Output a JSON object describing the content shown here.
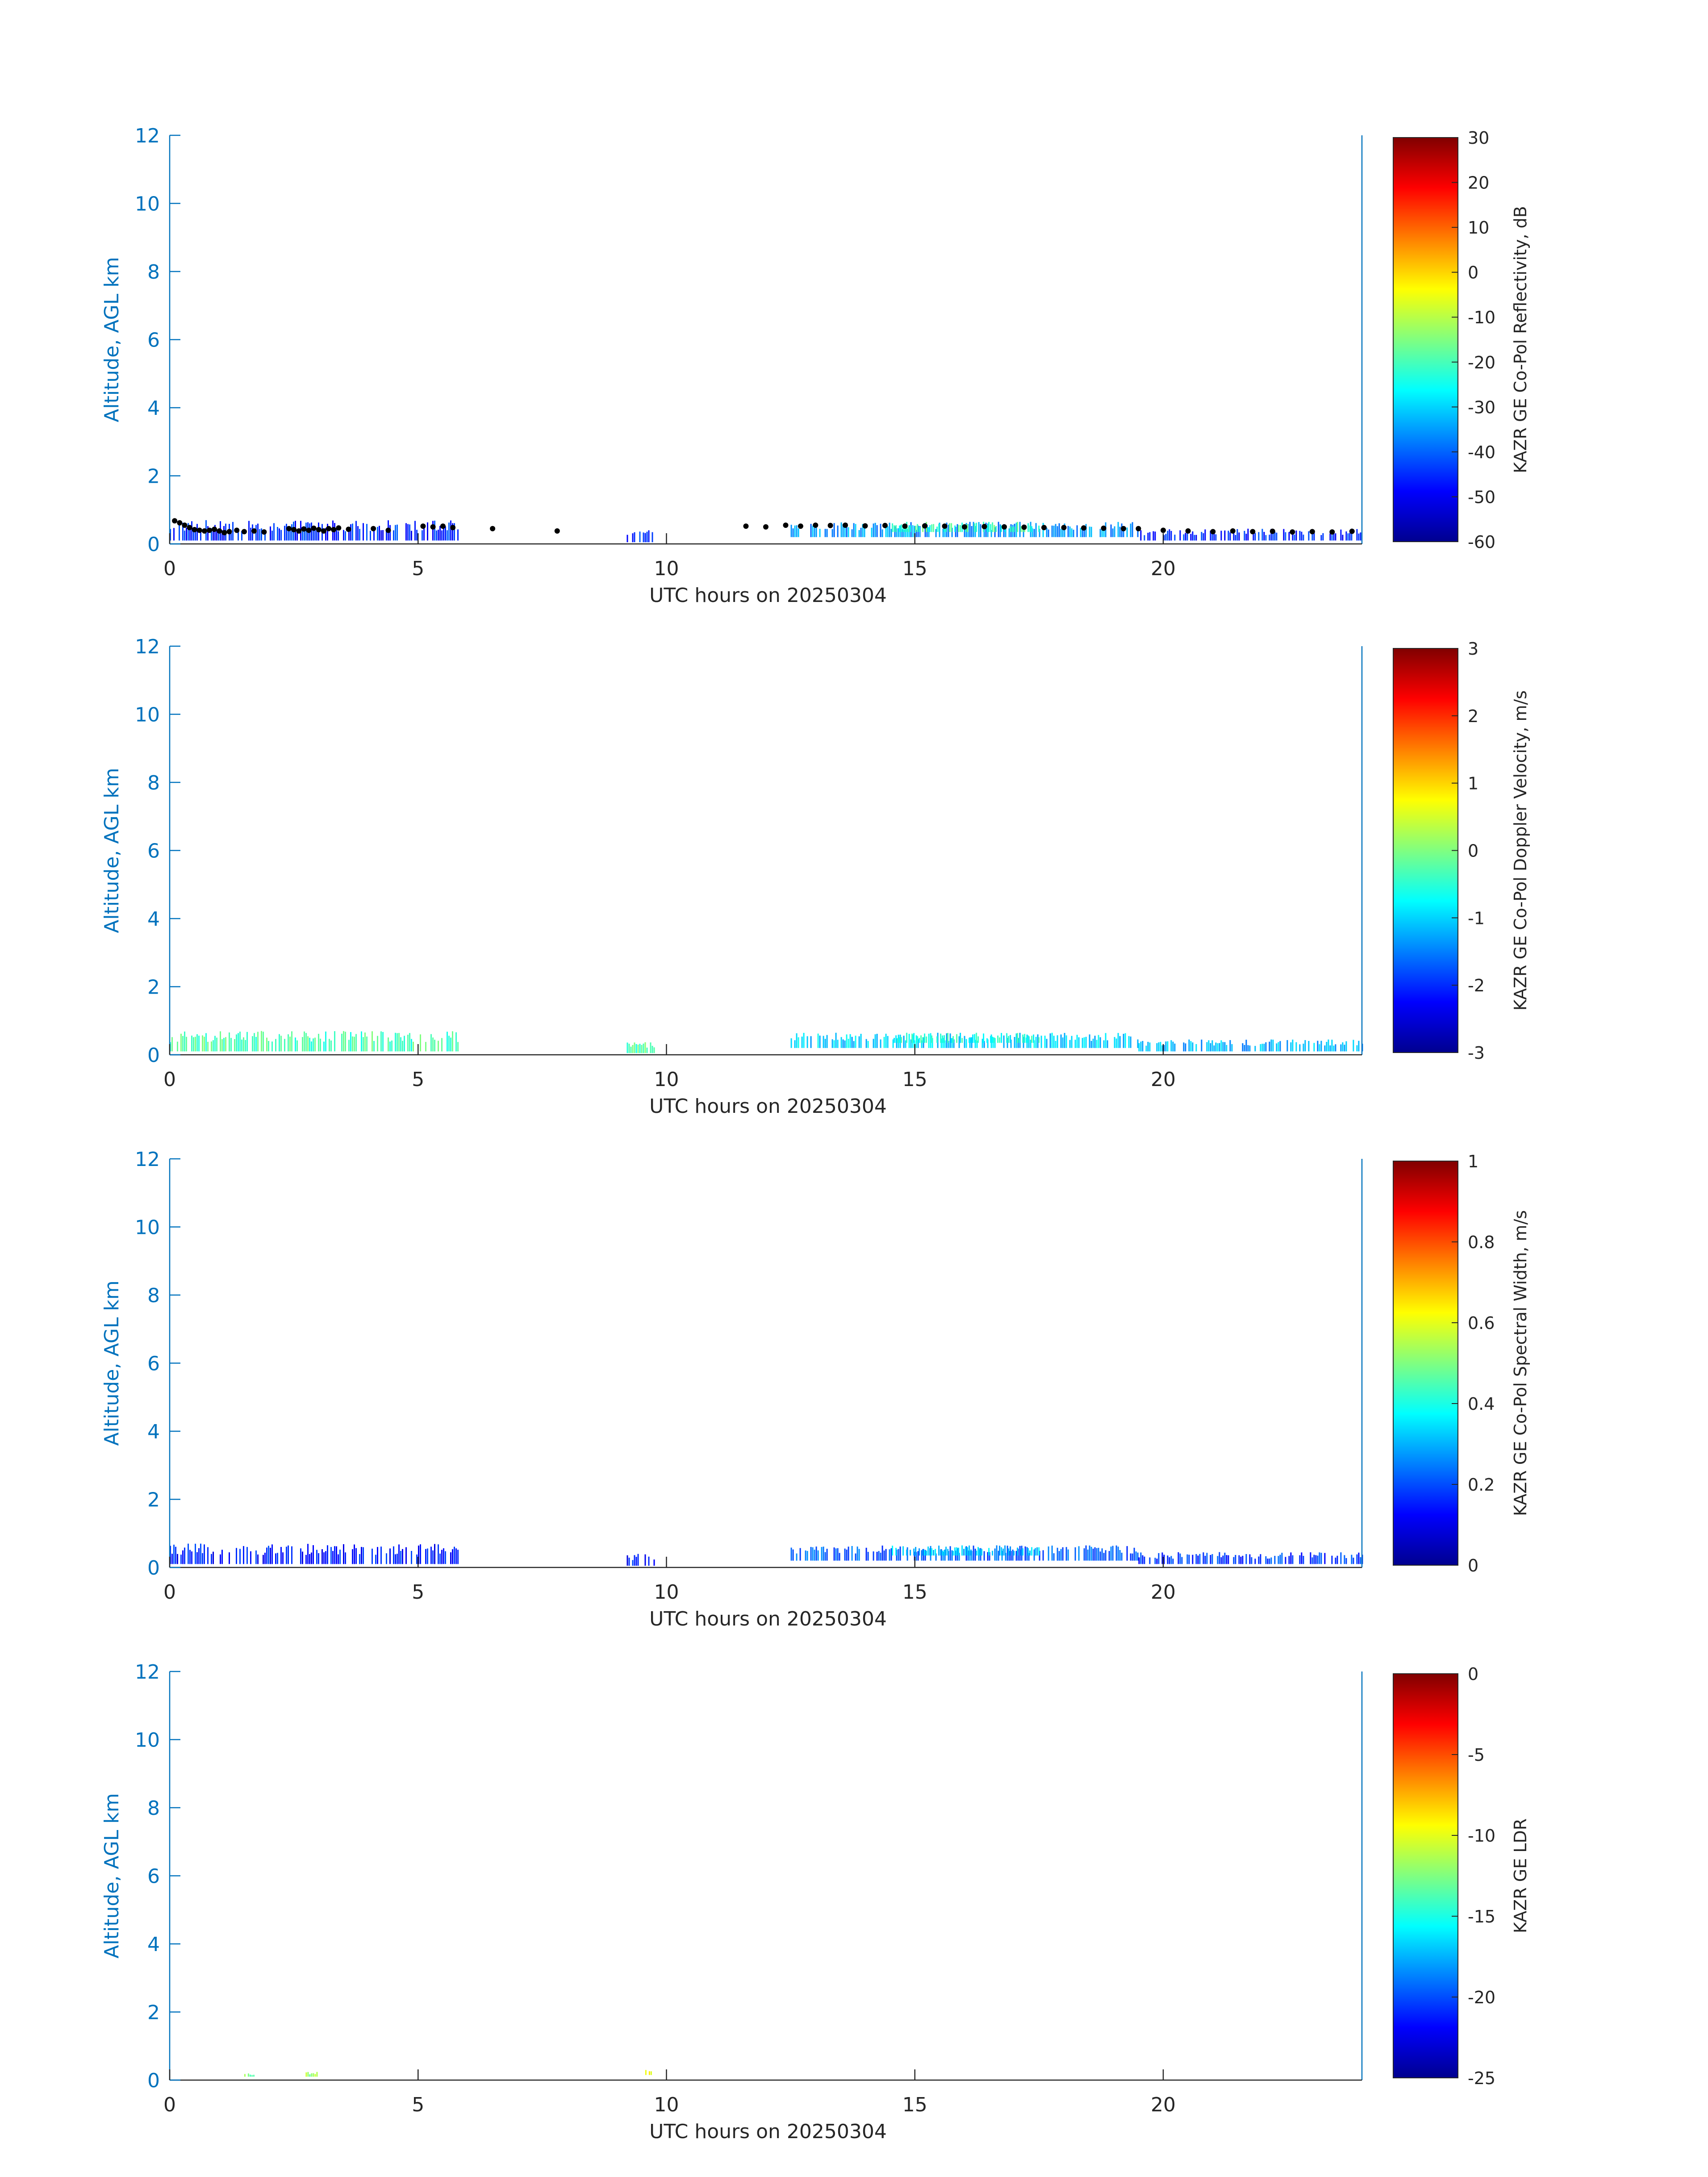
{
  "figure": {
    "panels": [
      {
        "ylabel": "Altitude, AGL km",
        "xlabel": "UTC hours on 20250304",
        "colorbar_label": "KAZR GE Co-Pol Reflectivity, dB",
        "colorbar_ticks": [
          "30",
          "20",
          "10",
          "0",
          "-10",
          "-20",
          "-30",
          "-40",
          "-50",
          "-60"
        ],
        "ytick_labels": [
          "0",
          "2",
          "4",
          "6",
          "8",
          "10",
          "12"
        ],
        "xtick_labels": [
          "0",
          "5",
          "10",
          "15",
          "20"
        ]
      },
      {
        "ylabel": "Altitude, AGL km",
        "xlabel": "UTC hours on 20250304",
        "colorbar_label": "KAZR GE Co-Pol Doppler Velocity, m/s",
        "colorbar_ticks": [
          "3",
          "2",
          "1",
          "0",
          "-1",
          "-2",
          "-3"
        ],
        "ytick_labels": [
          "0",
          "2",
          "4",
          "6",
          "8",
          "10",
          "12"
        ],
        "xtick_labels": [
          "0",
          "5",
          "10",
          "15",
          "20"
        ]
      },
      {
        "ylabel": "Altitude, AGL km",
        "xlabel": "UTC hours on 20250304",
        "colorbar_label": "KAZR GE Co-Pol Spectral Width, m/s",
        "colorbar_ticks": [
          "1",
          "0.8",
          "0.6",
          "0.4",
          "0.2",
          "0"
        ],
        "ytick_labels": [
          "0",
          "2",
          "4",
          "6",
          "8",
          "10",
          "12"
        ],
        "xtick_labels": [
          "0",
          "5",
          "10",
          "15",
          "20"
        ]
      },
      {
        "ylabel": "Altitude, AGL km",
        "xlabel": "UTC hours on 20250304",
        "colorbar_label": "KAZR GE LDR",
        "colorbar_ticks": [
          "0",
          "-5",
          "-10",
          "-15",
          "-20",
          "-25"
        ],
        "ytick_labels": [
          "0",
          "2",
          "4",
          "6",
          "8",
          "10",
          "12"
        ],
        "xtick_labels": [
          "0",
          "5",
          "10",
          "15",
          "20"
        ]
      }
    ]
  },
  "chart_data": [
    {
      "type": "heatmap",
      "variable": "KAZR GE Co-Pol Reflectivity",
      "units": "dB",
      "xlabel": "UTC hours on 20250304",
      "ylabel": "Altitude, AGL km",
      "xlim": [
        0,
        24
      ],
      "ylim": [
        0,
        12
      ],
      "xticks": [
        0,
        5,
        10,
        15,
        20
      ],
      "yticks": [
        0,
        2,
        4,
        6,
        8,
        10,
        12
      ],
      "clim": [
        -60,
        30
      ],
      "colorbar_ticks": [
        30,
        20,
        10,
        0,
        -10,
        -20,
        -30,
        -40,
        -50,
        -60
      ],
      "colormap": "jet",
      "echo_regions": [
        {
          "x": [
            0.0,
            5.8
          ],
          "y": [
            0.1,
            0.7
          ],
          "value": -45
        },
        {
          "x": [
            9.2,
            9.8
          ],
          "y": [
            0.05,
            0.4
          ],
          "value": -45
        },
        {
          "x": [
            12.5,
            19.5
          ],
          "y": [
            0.2,
            0.65
          ],
          "value": -35
        },
        {
          "x": [
            14.5,
            17.5
          ],
          "y": [
            0.35,
            0.65
          ],
          "value": -20
        },
        {
          "x": [
            19.5,
            24.0
          ],
          "y": [
            0.1,
            0.45
          ],
          "value": -45
        }
      ],
      "cloud_base_markers": {
        "color": "#000000",
        "points": [
          [
            0.1,
            0.68
          ],
          [
            0.2,
            0.62
          ],
          [
            0.3,
            0.55
          ],
          [
            0.4,
            0.48
          ],
          [
            0.5,
            0.42
          ],
          [
            0.6,
            0.4
          ],
          [
            0.7,
            0.38
          ],
          [
            0.8,
            0.4
          ],
          [
            0.9,
            0.43
          ],
          [
            1.0,
            0.38
          ],
          [
            1.1,
            0.33
          ],
          [
            1.2,
            0.36
          ],
          [
            1.35,
            0.4
          ],
          [
            1.5,
            0.36
          ],
          [
            1.7,
            0.38
          ],
          [
            1.9,
            0.35
          ],
          [
            2.4,
            0.45
          ],
          [
            2.5,
            0.42
          ],
          [
            2.6,
            0.38
          ],
          [
            2.7,
            0.44
          ],
          [
            2.8,
            0.4
          ],
          [
            2.9,
            0.46
          ],
          [
            3.0,
            0.42
          ],
          [
            3.1,
            0.38
          ],
          [
            3.2,
            0.45
          ],
          [
            3.3,
            0.42
          ],
          [
            3.4,
            0.47
          ],
          [
            3.6,
            0.43
          ],
          [
            4.1,
            0.45
          ],
          [
            4.4,
            0.4
          ],
          [
            5.1,
            0.52
          ],
          [
            5.3,
            0.5
          ],
          [
            5.5,
            0.52
          ],
          [
            5.7,
            0.48
          ],
          [
            6.5,
            0.45
          ],
          [
            7.8,
            0.38
          ],
          [
            11.6,
            0.52
          ],
          [
            12.0,
            0.5
          ],
          [
            12.4,
            0.55
          ],
          [
            12.7,
            0.52
          ],
          [
            13.0,
            0.55
          ],
          [
            13.3,
            0.54
          ],
          [
            13.6,
            0.55
          ],
          [
            14.0,
            0.53
          ],
          [
            14.4,
            0.54
          ],
          [
            14.8,
            0.52
          ],
          [
            15.2,
            0.53
          ],
          [
            15.6,
            0.52
          ],
          [
            16.0,
            0.5
          ],
          [
            16.4,
            0.51
          ],
          [
            16.8,
            0.5
          ],
          [
            17.2,
            0.49
          ],
          [
            17.6,
            0.48
          ],
          [
            18.0,
            0.48
          ],
          [
            18.4,
            0.47
          ],
          [
            18.8,
            0.46
          ],
          [
            19.2,
            0.45
          ],
          [
            19.5,
            0.45
          ],
          [
            20.0,
            0.4
          ],
          [
            20.5,
            0.38
          ],
          [
            21.0,
            0.36
          ],
          [
            21.4,
            0.38
          ],
          [
            21.8,
            0.36
          ],
          [
            22.2,
            0.37
          ],
          [
            22.6,
            0.35
          ],
          [
            23.0,
            0.36
          ],
          [
            23.4,
            0.35
          ],
          [
            23.8,
            0.37
          ]
        ]
      }
    },
    {
      "type": "heatmap",
      "variable": "KAZR GE Co-Pol Doppler Velocity",
      "units": "m/s",
      "xlabel": "UTC hours on 20250304",
      "ylabel": "Altitude, AGL km",
      "xlim": [
        0,
        24
      ],
      "ylim": [
        0,
        12
      ],
      "xticks": [
        0,
        5,
        10,
        15,
        20
      ],
      "yticks": [
        0,
        2,
        4,
        6,
        8,
        10,
        12
      ],
      "clim": [
        -3,
        3
      ],
      "colorbar_ticks": [
        3,
        2,
        1,
        0,
        -1,
        -2,
        -3
      ],
      "colormap": "jet",
      "echo_regions": [
        {
          "x": [
            0.0,
            5.8
          ],
          "y": [
            0.1,
            0.7
          ],
          "value": -0.3
        },
        {
          "x": [
            9.2,
            9.8
          ],
          "y": [
            0.05,
            0.4
          ],
          "value": -0.3
        },
        {
          "x": [
            12.5,
            19.5
          ],
          "y": [
            0.2,
            0.65
          ],
          "value": -1.0
        },
        {
          "x": [
            14.5,
            17.5
          ],
          "y": [
            0.35,
            0.65
          ],
          "value": -0.6
        },
        {
          "x": [
            19.5,
            24.0
          ],
          "y": [
            0.1,
            0.45
          ],
          "value": -1.2
        }
      ]
    },
    {
      "type": "heatmap",
      "variable": "KAZR GE Co-Pol Spectral Width",
      "units": "m/s",
      "xlabel": "UTC hours on 20250304",
      "ylabel": "Altitude, AGL km",
      "xlim": [
        0,
        24
      ],
      "ylim": [
        0,
        12
      ],
      "xticks": [
        0,
        5,
        10,
        15,
        20
      ],
      "yticks": [
        0,
        2,
        4,
        6,
        8,
        10,
        12
      ],
      "clim": [
        0,
        1
      ],
      "colorbar_ticks": [
        1,
        0.8,
        0.6,
        0.4,
        0.2,
        0
      ],
      "colormap": "jet",
      "echo_regions": [
        {
          "x": [
            0.0,
            5.8
          ],
          "y": [
            0.1,
            0.7
          ],
          "value": 0.15
        },
        {
          "x": [
            9.2,
            9.8
          ],
          "y": [
            0.05,
            0.4
          ],
          "value": 0.15
        },
        {
          "x": [
            12.5,
            19.5
          ],
          "y": [
            0.2,
            0.65
          ],
          "value": 0.22
        },
        {
          "x": [
            14.5,
            17.5
          ],
          "y": [
            0.35,
            0.65
          ],
          "value": 0.32
        },
        {
          "x": [
            19.5,
            24.0
          ],
          "y": [
            0.1,
            0.45
          ],
          "value": 0.18
        }
      ]
    },
    {
      "type": "heatmap",
      "variable": "KAZR GE LDR",
      "units": "",
      "xlabel": "UTC hours on 20250304",
      "ylabel": "Altitude, AGL km",
      "xlim": [
        0,
        24
      ],
      "ylim": [
        0,
        12
      ],
      "xticks": [
        0,
        5,
        10,
        15,
        20
      ],
      "yticks": [
        0,
        2,
        4,
        6,
        8,
        10,
        12
      ],
      "clim": [
        -25,
        0
      ],
      "colorbar_ticks": [
        0,
        -5,
        -10,
        -15,
        -20,
        -25
      ],
      "colormap": "jet",
      "echo_regions": [
        {
          "x": [
            1.5,
            1.7
          ],
          "y": [
            0.1,
            0.2
          ],
          "value": -13
        },
        {
          "x": [
            2.7,
            3.0
          ],
          "y": [
            0.1,
            0.25
          ],
          "value": -12
        },
        {
          "x": [
            9.5,
            9.7
          ],
          "y": [
            0.15,
            0.3
          ],
          "value": -10
        }
      ]
    }
  ],
  "colors": {
    "axis": "#0072BD",
    "text": "#262626",
    "background": "#ffffff"
  }
}
